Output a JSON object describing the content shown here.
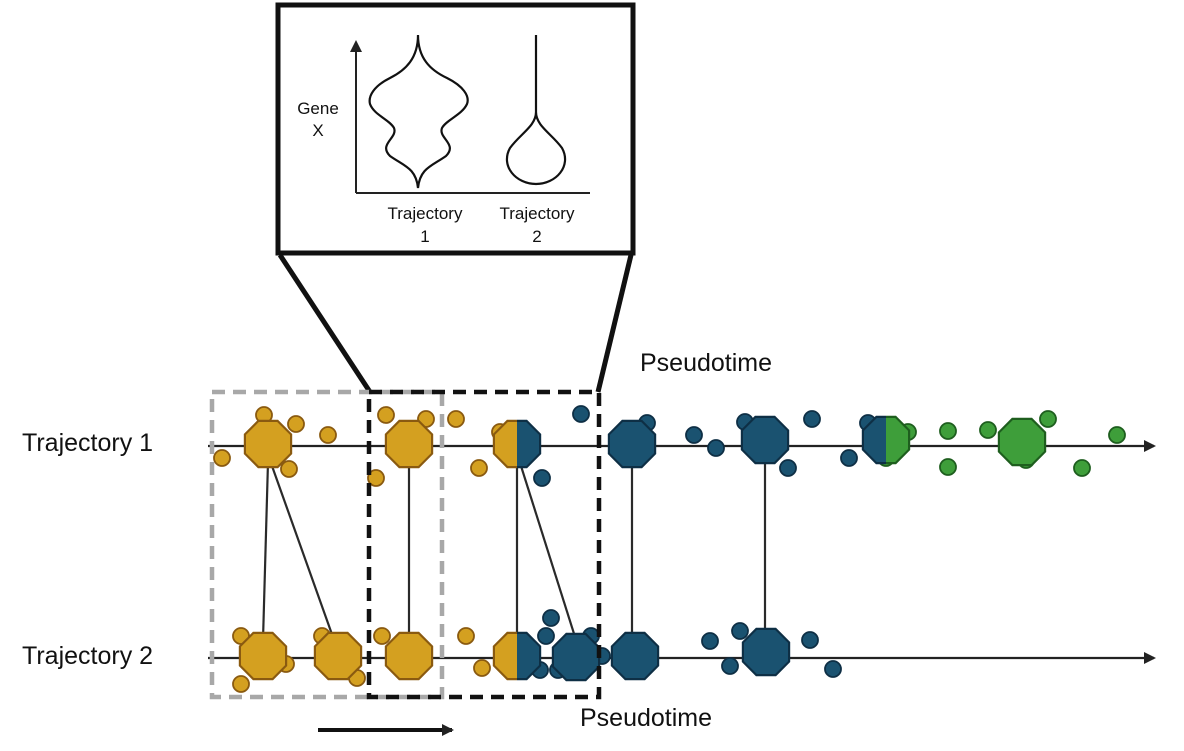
{
  "inset": {
    "y_axis_label_line1": "Gene",
    "y_axis_label_line2": "X",
    "violin_1_label_line1": "Trajectory",
    "violin_1_label_line2": "1",
    "violin_2_label_line1": "Trajectory",
    "violin_2_label_line2": "2"
  },
  "trajectories": {
    "trajectory_1_label": "Trajectory 1",
    "trajectory_2_label": "Trajectory 2",
    "pseudotime_top_label": "Pseudotime",
    "pseudotime_bottom_label": "Pseudotime"
  },
  "colors": {
    "early_state": "#D4A020",
    "early_state_stroke": "#8A5A10",
    "mid_state": "#1A5270",
    "mid_state_stroke": "#0E2F45",
    "late_state": "#3E9E3A",
    "late_state_stroke": "#1E5E1E",
    "window_gray": "#A8A8A8",
    "window_black": "#111111"
  },
  "icons": {
    "cell_cluster": "octagon-icon",
    "single_cell": "circle-icon",
    "transition_cluster": "half-split-octagon-icon"
  }
}
